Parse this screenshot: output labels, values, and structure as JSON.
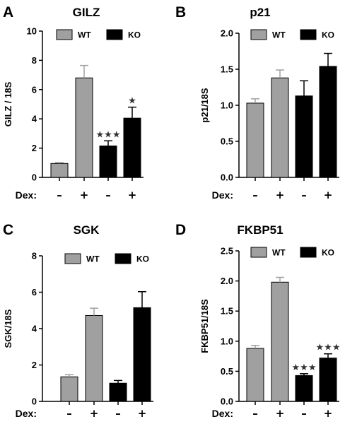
{
  "colors": {
    "wt": "#a0a0a0",
    "ko": "#000000",
    "axis": "#000000"
  },
  "chart_data": [
    {
      "panel": "A",
      "type": "bar",
      "title": "GILZ",
      "ylabel": "GILZ / 18S",
      "ylim": [
        0,
        10
      ],
      "yticks": [
        "0",
        "2",
        "4",
        "6",
        "8",
        "10"
      ],
      "ytick_values": [
        0,
        2,
        4,
        6,
        8,
        10
      ],
      "x_title": "Dex:",
      "categories": [
        "–",
        "+",
        "–",
        "+"
      ],
      "legend": [
        "WT",
        "KO"
      ],
      "legend_position": "top",
      "bars": [
        {
          "group": "WT",
          "value": 0.95,
          "error": 0.07,
          "stars": ""
        },
        {
          "group": "WT",
          "value": 6.8,
          "error": 0.85,
          "stars": ""
        },
        {
          "group": "KO",
          "value": 2.15,
          "error": 0.35,
          "stars": "★★★"
        },
        {
          "group": "KO",
          "value": 4.05,
          "error": 0.75,
          "stars": "★"
        }
      ]
    },
    {
      "panel": "B",
      "type": "bar",
      "title": "p21",
      "ylabel": "p21/18S",
      "ylim": [
        0,
        2.0
      ],
      "yticks": [
        "0.0",
        "0.5",
        "1.0",
        "1.5",
        "2.0"
      ],
      "ytick_values": [
        0,
        0.5,
        1.0,
        1.5,
        2.0
      ],
      "x_title": "Dex:",
      "categories": [
        "–",
        "+",
        "–",
        "+"
      ],
      "legend": [
        "WT",
        "KO"
      ],
      "legend_position": "top",
      "bars": [
        {
          "group": "WT",
          "value": 1.03,
          "error": 0.06,
          "stars": ""
        },
        {
          "group": "WT",
          "value": 1.38,
          "error": 0.11,
          "stars": ""
        },
        {
          "group": "KO",
          "value": 1.13,
          "error": 0.21,
          "stars": ""
        },
        {
          "group": "KO",
          "value": 1.54,
          "error": 0.18,
          "stars": ""
        }
      ]
    },
    {
      "panel": "C",
      "type": "bar",
      "title": "SGK",
      "ylabel": "SGK/18S",
      "ylim": [
        0,
        8
      ],
      "yticks": [
        "0",
        "2",
        "4",
        "6",
        "8"
      ],
      "ytick_values": [
        0,
        2,
        4,
        6,
        8
      ],
      "x_title": "Dex:",
      "categories": [
        "–",
        "+",
        "–",
        "+"
      ],
      "legend": [
        "WT",
        "KO"
      ],
      "legend_position": "top",
      "bars": [
        {
          "group": "WT",
          "value": 1.35,
          "error": 0.12,
          "stars": ""
        },
        {
          "group": "WT",
          "value": 4.72,
          "error": 0.4,
          "stars": ""
        },
        {
          "group": "KO",
          "value": 1.0,
          "error": 0.15,
          "stars": ""
        },
        {
          "group": "KO",
          "value": 5.15,
          "error": 0.88,
          "stars": ""
        }
      ]
    },
    {
      "panel": "D",
      "type": "bar",
      "title": "FKBP51",
      "ylabel": "FKBP51/18S",
      "ylim": [
        0,
        2.5
      ],
      "yticks": [
        "0.0",
        "0.5",
        "1.0",
        "1.5",
        "2.0",
        "2.5"
      ],
      "ytick_values": [
        0,
        0.5,
        1.0,
        1.5,
        2.0,
        2.5
      ],
      "x_title": "Dex:",
      "categories": [
        "–",
        "+",
        "–",
        "+"
      ],
      "legend": [
        "WT",
        "KO"
      ],
      "legend_position": "top",
      "bars": [
        {
          "group": "WT",
          "value": 0.88,
          "error": 0.05,
          "stars": ""
        },
        {
          "group": "WT",
          "value": 1.98,
          "error": 0.08,
          "stars": ""
        },
        {
          "group": "KO",
          "value": 0.43,
          "error": 0.03,
          "stars": "★★★"
        },
        {
          "group": "KO",
          "value": 0.72,
          "error": 0.07,
          "stars": "★★★"
        }
      ]
    }
  ]
}
